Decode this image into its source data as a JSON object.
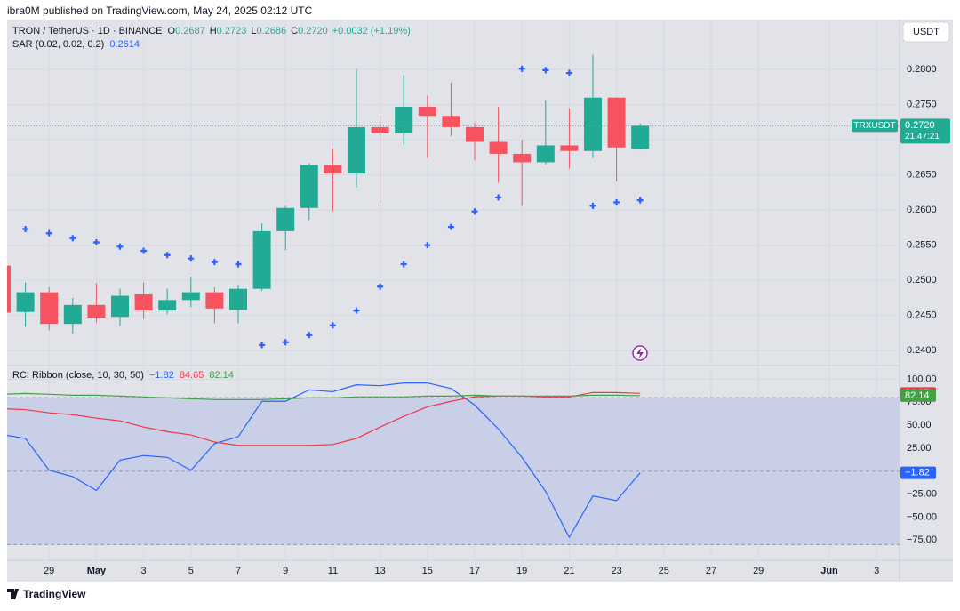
{
  "header": {
    "published": "ibra0M published on TradingView.com, May 24, 2025 02:12 UTC",
    "currency_button": "USDT",
    "logo": "TradingView"
  },
  "chart_data": [
    {
      "type": "candlestick",
      "title": "TRON / TetherUS · 1D · BINANCE",
      "categories": [
        null,
        null,
        "29",
        null,
        "May",
        null,
        "3",
        null,
        "5",
        null,
        "7",
        null,
        "9",
        null,
        "11",
        null,
        "13",
        null,
        "15",
        null,
        "17",
        null,
        "19",
        null,
        "21",
        null,
        "23",
        null,
        "25",
        null,
        "27",
        null,
        "29",
        null,
        null,
        "Jun",
        null,
        "3"
      ],
      "open": [
        0.2521,
        0.2455,
        0.2483,
        0.2438,
        0.2465,
        0.2448,
        0.248,
        0.2457,
        0.2472,
        0.2483,
        0.2458,
        0.2488,
        0.257,
        0.2603,
        0.2664,
        0.2652,
        0.2718,
        0.2709,
        0.2747,
        0.2734,
        0.2718,
        0.2697,
        0.268,
        0.2668,
        0.2692,
        0.2684,
        0.276,
        0.2687,
        null,
        null,
        null,
        null,
        null,
        null,
        null,
        null,
        null,
        null
      ],
      "high": [
        0.2525,
        0.2497,
        0.249,
        0.2475,
        0.2496,
        0.2488,
        0.2497,
        0.2488,
        0.2505,
        0.249,
        0.2493,
        0.2581,
        0.2606,
        0.2667,
        0.2687,
        0.2801,
        0.2736,
        0.2792,
        0.2763,
        0.2781,
        0.2724,
        0.2747,
        0.27,
        0.2756,
        0.2745,
        0.2821,
        0.276,
        0.2723,
        null,
        null,
        null,
        null,
        null,
        null,
        null,
        null,
        null,
        null
      ],
      "low": [
        0.245,
        0.2434,
        0.2429,
        0.2424,
        0.244,
        0.2435,
        0.2445,
        0.2452,
        0.2462,
        0.2439,
        0.2439,
        0.2485,
        0.2543,
        0.2586,
        0.2598,
        0.2632,
        0.261,
        0.2693,
        0.2674,
        0.2705,
        0.2671,
        0.2639,
        0.2606,
        0.2665,
        0.2659,
        0.2674,
        0.2641,
        0.2686,
        null,
        null,
        null,
        null,
        null,
        null,
        null,
        null,
        null,
        null
      ],
      "close": [
        0.2454,
        0.2483,
        0.2438,
        0.2465,
        0.2447,
        0.2478,
        0.2457,
        0.2472,
        0.2483,
        0.246,
        0.2488,
        0.257,
        0.2603,
        0.2664,
        0.2652,
        0.2718,
        0.2709,
        0.2747,
        0.2734,
        0.2718,
        0.2697,
        0.268,
        0.2668,
        0.2692,
        0.2684,
        0.276,
        0.2689,
        0.272,
        null,
        null,
        null,
        null,
        null,
        null,
        null,
        null,
        null,
        null
      ],
      "up_color": "#22ab94",
      "down_color": "#f7525f",
      "ohlc_legend": [
        {
          "key": "O",
          "value": "0.2687"
        },
        {
          "key": "H",
          "value": "0.2723"
        },
        {
          "key": "L",
          "value": "0.2686"
        },
        {
          "key": "C",
          "value": "0.2720"
        }
      ],
      "change": "+0.0032 (+1.19%)",
      "symbol_badge": "TRXUSDT",
      "price_badge": "0.2720",
      "countdown": "21:47:21",
      "series": [
        {
          "name": "SAR (0.02, 0.02, 0.2)",
          "color": "#2962ff",
          "legend_value": "0.2614",
          "values": [
            null,
            0.2573,
            0.2567,
            0.256,
            0.2554,
            0.2548,
            0.2542,
            0.2536,
            0.2531,
            0.2526,
            0.2523,
            0.2408,
            0.2412,
            0.2422,
            0.2436,
            0.2457,
            0.2491,
            0.2523,
            0.255,
            0.2576,
            0.2598,
            0.2618,
            0.2801,
            0.2799,
            0.2795,
            0.2606,
            0.2611,
            0.2614,
            null,
            null,
            null,
            null,
            null,
            null,
            null,
            null,
            null,
            null
          ]
        }
      ],
      "ylim": [
        0.238,
        0.2871
      ],
      "yticks": [
        {
          "value": 0.24,
          "label": "0.2400"
        },
        {
          "value": 0.245,
          "label": "0.2450"
        },
        {
          "value": 0.25,
          "label": "0.2500"
        },
        {
          "value": 0.255,
          "label": "0.2550"
        },
        {
          "value": 0.26,
          "label": "0.2600"
        },
        {
          "value": 0.265,
          "label": "0.2650"
        },
        {
          "value": 0.27,
          "label": "0.2700"
        },
        {
          "value": 0.275,
          "label": "0.2750"
        },
        {
          "value": 0.28,
          "label": "0.2800"
        }
      ],
      "grid": true
    },
    {
      "type": "line",
      "title": "RCI Ribbon (close, 10, 30, 50)",
      "series": [
        {
          "color": "#2962ff",
          "legend_value": "−1.82",
          "values": [
            40,
            35.6,
            1,
            -6,
            -21,
            12,
            17,
            15,
            1,
            30,
            37.5,
            76,
            76,
            88.5,
            86.5,
            94,
            93,
            96,
            96,
            90,
            72,
            46,
            15,
            -22,
            -72,
            -27,
            -32,
            -1.82,
            null,
            null,
            null,
            null,
            null,
            null,
            null,
            null,
            null,
            null
          ]
        },
        {
          "color": "#f23645",
          "legend_value": "84.65",
          "values": [
            68,
            67,
            63.5,
            61.5,
            57.7,
            54.8,
            48,
            43,
            39.4,
            31.7,
            28,
            28,
            28,
            28,
            29,
            35.6,
            48,
            59.6,
            70,
            76,
            81,
            81.7,
            81.7,
            80.8,
            80.8,
            85.6,
            85.6,
            84.65,
            null,
            null,
            null,
            null,
            null,
            null,
            null,
            null,
            null,
            null
          ]
        },
        {
          "color": "#43a047",
          "legend_value": "82.14",
          "values": [
            83.7,
            84.6,
            83.7,
            82.7,
            82.7,
            81.7,
            80.8,
            79.8,
            78.8,
            77.9,
            77.9,
            77.9,
            78.8,
            79.8,
            79.8,
            80.8,
            80.8,
            80.8,
            81.7,
            81.7,
            82.7,
            81.7,
            81.7,
            81.7,
            81.7,
            82.7,
            82.7,
            82.14,
            null,
            null,
            null,
            null,
            null,
            null,
            null,
            null,
            null,
            null
          ]
        }
      ],
      "levels": [
        -80,
        0,
        80
      ],
      "band_color": "#c8cfe7",
      "ylim": [
        -97,
        114
      ],
      "yticks": [
        {
          "value": -75,
          "label": "−75.00"
        },
        {
          "value": -50,
          "label": "−50.00"
        },
        {
          "value": -25,
          "label": "−25.00"
        },
        {
          "value": 25,
          "label": "25.00"
        },
        {
          "value": 50,
          "label": "50.00"
        },
        {
          "value": 75,
          "label": "75.00"
        },
        {
          "value": 100,
          "label": "100.00"
        }
      ]
    }
  ]
}
